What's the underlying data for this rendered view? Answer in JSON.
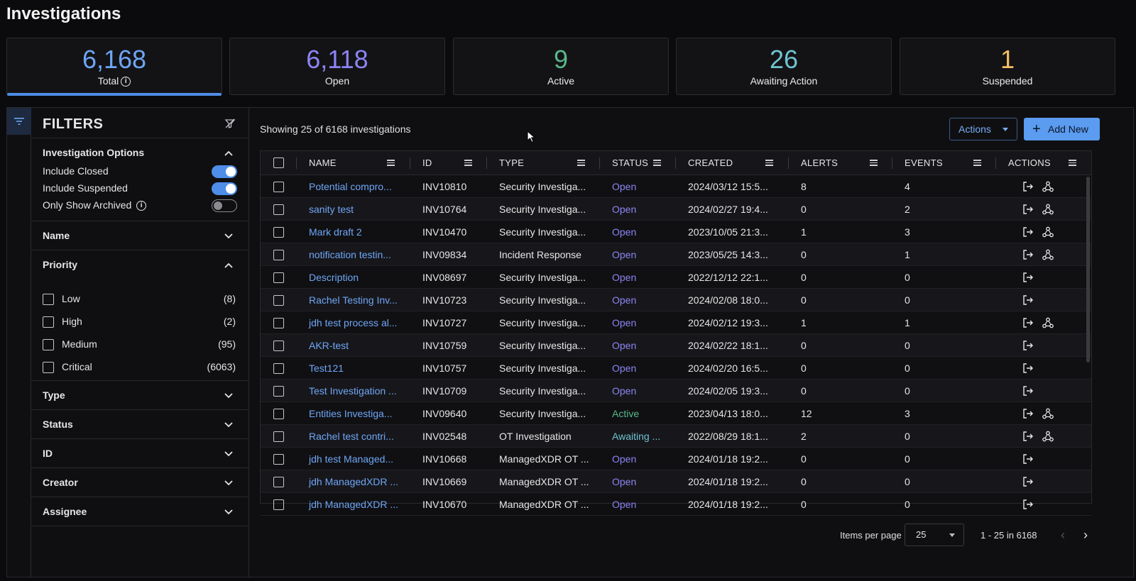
{
  "page": {
    "title": "Investigations"
  },
  "stats": [
    {
      "value": "6,168",
      "label": "Total",
      "color": "#6fa6f5"
    },
    {
      "value": "6,118",
      "label": "Open",
      "color": "#8c84f2"
    },
    {
      "value": "9",
      "label": "Active",
      "color": "#59b88a"
    },
    {
      "value": "26",
      "label": "Awaiting Action",
      "color": "#6fc3cf"
    },
    {
      "value": "1",
      "label": "Suspended",
      "color": "#f3c062"
    }
  ],
  "filters": {
    "title": "FILTERS",
    "investigation_options": {
      "title": "Investigation Options",
      "include_closed": {
        "label": "Include Closed",
        "on": true
      },
      "include_suspended": {
        "label": "Include Suspended",
        "on": true
      },
      "only_show_archived": {
        "label": "Only Show Archived",
        "on": false
      }
    },
    "name": "Name",
    "priority": {
      "title": "Priority",
      "items": [
        {
          "label": "Low",
          "count": "(8)"
        },
        {
          "label": "High",
          "count": "(2)"
        },
        {
          "label": "Medium",
          "count": "(95)"
        },
        {
          "label": "Critical",
          "count": "(6063)"
        }
      ]
    },
    "type": "Type",
    "status": "Status",
    "id": "ID",
    "creator": "Creator",
    "assignee": "Assignee"
  },
  "toolbar": {
    "showing": "Showing 25 of 6168 investigations",
    "actions_label": "Actions",
    "add_new_label": "Add New"
  },
  "table": {
    "columns": [
      "NAME",
      "ID",
      "TYPE",
      "STATUS",
      "CREATED",
      "ALERTS",
      "EVENTS",
      "ACTIONS"
    ],
    "rows": [
      {
        "name": "Potential compro...",
        "id": "INV10810",
        "type": "Security Investiga...",
        "status": "Open",
        "created": "2024/03/12 15:5...",
        "alerts": "8",
        "events": "4",
        "graph": true
      },
      {
        "name": "sanity test",
        "id": "INV10764",
        "type": "Security Investiga...",
        "status": "Open",
        "created": "2024/02/27 19:4...",
        "alerts": "0",
        "events": "2",
        "graph": true
      },
      {
        "name": "Mark draft 2",
        "id": "INV10470",
        "type": "Security Investiga...",
        "status": "Open",
        "created": "2023/10/05 21:3...",
        "alerts": "1",
        "events": "3",
        "graph": true
      },
      {
        "name": "notification testin...",
        "id": "INV09834",
        "type": "Incident Response",
        "status": "Open",
        "created": "2023/05/25 14:3...",
        "alerts": "0",
        "events": "1",
        "graph": true
      },
      {
        "name": "Description",
        "id": "INV08697",
        "type": "Security Investiga...",
        "status": "Open",
        "created": "2022/12/12 22:1...",
        "alerts": "0",
        "events": "0",
        "graph": false
      },
      {
        "name": "Rachel Testing Inv...",
        "id": "INV10723",
        "type": "Security Investiga...",
        "status": "Open",
        "created": "2024/02/08 18:0...",
        "alerts": "0",
        "events": "0",
        "graph": false
      },
      {
        "name": "jdh test process al...",
        "id": "INV10727",
        "type": "Security Investiga...",
        "status": "Open",
        "created": "2024/02/12 19:3...",
        "alerts": "1",
        "events": "1",
        "graph": true
      },
      {
        "name": "AKR-test",
        "id": "INV10759",
        "type": "Security Investiga...",
        "status": "Open",
        "created": "2024/02/22 18:1...",
        "alerts": "0",
        "events": "0",
        "graph": false
      },
      {
        "name": "Test121",
        "id": "INV10757",
        "type": "Security Investiga...",
        "status": "Open",
        "created": "2024/02/20 16:5...",
        "alerts": "0",
        "events": "0",
        "graph": false
      },
      {
        "name": "Test Investigation ...",
        "id": "INV10709",
        "type": "Security Investiga...",
        "status": "Open",
        "created": "2024/02/05 19:3...",
        "alerts": "0",
        "events": "0",
        "graph": false
      },
      {
        "name": "Entities Investiga...",
        "id": "INV09640",
        "type": "Security Investiga...",
        "status": "Active",
        "created": "2023/04/13 18:0...",
        "alerts": "12",
        "events": "3",
        "graph": true
      },
      {
        "name": "Rachel test contri...",
        "id": "INV02548",
        "type": "OT Investigation",
        "status": "Awaiting ...",
        "created": "2022/08/29 18:1...",
        "alerts": "2",
        "events": "0",
        "graph": true
      },
      {
        "name": "jdh test Managed...",
        "id": "INV10668",
        "type": "ManagedXDR OT ...",
        "status": "Open",
        "created": "2024/01/18 19:2...",
        "alerts": "0",
        "events": "0",
        "graph": false
      },
      {
        "name": "jdh ManagedXDR ...",
        "id": "INV10669",
        "type": "ManagedXDR OT ...",
        "status": "Open",
        "created": "2024/01/18 19:2...",
        "alerts": "0",
        "events": "0",
        "graph": false
      },
      {
        "name": "jdh ManagedXDR ...",
        "id": "INV10670",
        "type": "ManagedXDR OT ...",
        "status": "Open",
        "created": "2024/01/18 19:2...",
        "alerts": "0",
        "events": "0",
        "graph": false
      }
    ]
  },
  "pagination": {
    "items_per_page_label": "Items per page",
    "items_per_page": "25",
    "range": "1 - 25 in 6168"
  }
}
